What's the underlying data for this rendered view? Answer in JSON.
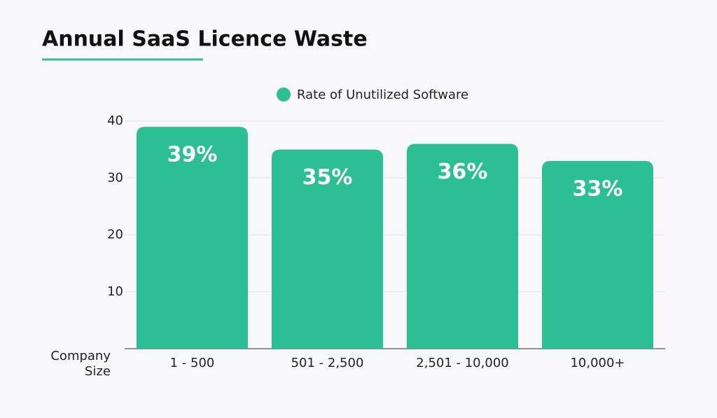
{
  "chart_data": {
    "type": "bar",
    "title": "Annual SaaS Licence Waste",
    "x_label": "Company Size",
    "categories": [
      "1 - 500",
      "501 - 2,500",
      "2,501 - 10,000",
      "10,000+"
    ],
    "series": [
      {
        "name": "Rate of Unutilized Software",
        "color": "#2bbf93",
        "values": [
          39,
          35,
          36,
          33
        ],
        "value_labels": [
          "39%",
          "35%",
          "36%",
          "33%"
        ]
      }
    ],
    "ylim": [
      0,
      40
    ],
    "yticks": [
      10,
      20,
      30,
      40
    ],
    "grid": true,
    "legend": "top"
  }
}
